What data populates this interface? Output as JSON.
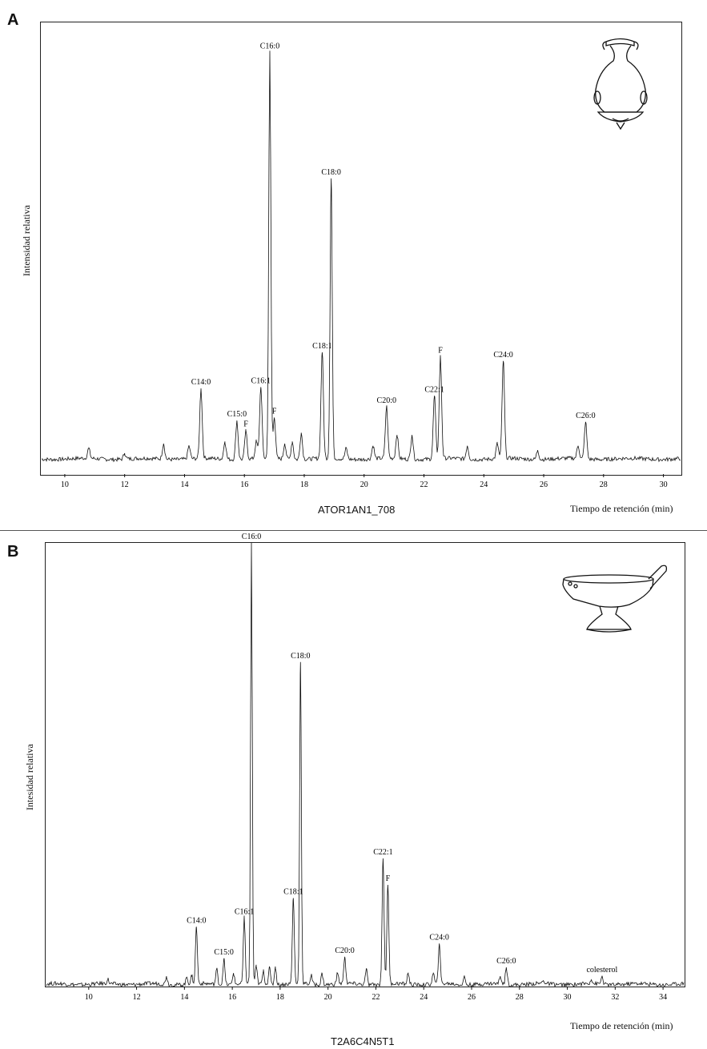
{
  "panels": [
    {
      "letter": "A",
      "ylabel": "Intensidad relativa",
      "xlabel": "Tiempo de retención (min)",
      "sample": "ATOR1AN1_708",
      "vessel_icon": "amphora-vessel-icon"
    },
    {
      "letter": "B",
      "ylabel": "Intesidad relativa",
      "xlabel": "Tiempo de retención (min)",
      "sample": "T2A6C4N5T1",
      "vessel_icon": "oil-lamp-vessel-icon"
    }
  ],
  "chart_data": [
    {
      "type": "line",
      "title": "",
      "xlabel": "Tiempo de retención (min)",
      "ylabel": "Intensidad relativa",
      "xlim": [
        9.2,
        30.6
      ],
      "ylim": [
        0,
        100
      ],
      "xticks": [
        10,
        12,
        14,
        16,
        18,
        20,
        22,
        24,
        26,
        28,
        30
      ],
      "peaks": [
        {
          "x": 10.8,
          "y": 2.3,
          "label": ""
        },
        {
          "x": 12.0,
          "y": 1.3,
          "label": ""
        },
        {
          "x": 13.3,
          "y": 3.5,
          "label": ""
        },
        {
          "x": 14.15,
          "y": 3.0,
          "label": ""
        },
        {
          "x": 14.55,
          "y": 16.2,
          "label": "C14:0"
        },
        {
          "x": 15.35,
          "y": 4.0,
          "label": ""
        },
        {
          "x": 15.75,
          "y": 8.8,
          "label": "C15:0"
        },
        {
          "x": 16.05,
          "y": 6.5,
          "label": "F"
        },
        {
          "x": 16.4,
          "y": 4.0,
          "label": ""
        },
        {
          "x": 16.55,
          "y": 16.5,
          "label": "C16:1"
        },
        {
          "x": 16.85,
          "y": 93.5,
          "label": "C16:0"
        },
        {
          "x": 17.0,
          "y": 9.5,
          "label": "F"
        },
        {
          "x": 17.35,
          "y": 3.5,
          "label": ""
        },
        {
          "x": 17.6,
          "y": 4.0,
          "label": ""
        },
        {
          "x": 17.9,
          "y": 6.0,
          "label": ""
        },
        {
          "x": 18.6,
          "y": 24.5,
          "label": "C18:1"
        },
        {
          "x": 18.9,
          "y": 64.5,
          "label": "C18:0"
        },
        {
          "x": 19.4,
          "y": 2.5,
          "label": ""
        },
        {
          "x": 20.3,
          "y": 3.0,
          "label": ""
        },
        {
          "x": 20.75,
          "y": 12.0,
          "label": "C20:0"
        },
        {
          "x": 21.1,
          "y": 5.5,
          "label": ""
        },
        {
          "x": 21.6,
          "y": 5.5,
          "label": ""
        },
        {
          "x": 22.35,
          "y": 14.5,
          "label": "C22:1"
        },
        {
          "x": 22.55,
          "y": 23.5,
          "label": "F"
        },
        {
          "x": 23.45,
          "y": 3.0,
          "label": ""
        },
        {
          "x": 24.45,
          "y": 3.5,
          "label": ""
        },
        {
          "x": 24.65,
          "y": 22.5,
          "label": "C24:0"
        },
        {
          "x": 25.8,
          "y": 2.0,
          "label": ""
        },
        {
          "x": 27.15,
          "y": 3.0,
          "label": ""
        },
        {
          "x": 27.4,
          "y": 8.5,
          "label": "C26:0"
        }
      ]
    },
    {
      "type": "line",
      "title": "",
      "xlabel": "Tiempo de retención (min)",
      "ylabel": "Intesidad relativa",
      "xlim": [
        8.2,
        34.9
      ],
      "ylim": [
        0,
        100
      ],
      "xticks": [
        10,
        12,
        14,
        16,
        18,
        20,
        22,
        24,
        26,
        28,
        30,
        32,
        34
      ],
      "peaks": [
        {
          "x": 10.8,
          "y": 1.0,
          "label": ""
        },
        {
          "x": 13.25,
          "y": 1.8,
          "label": ""
        },
        {
          "x": 14.1,
          "y": 1.6,
          "label": ""
        },
        {
          "x": 14.3,
          "y": 1.8,
          "label": ""
        },
        {
          "x": 14.5,
          "y": 13.0,
          "label": "C14:0"
        },
        {
          "x": 15.35,
          "y": 3.5,
          "label": ""
        },
        {
          "x": 15.65,
          "y": 5.8,
          "label": "C15:0"
        },
        {
          "x": 16.05,
          "y": 2.5,
          "label": ""
        },
        {
          "x": 16.5,
          "y": 15.0,
          "label": "C16:1"
        },
        {
          "x": 16.8,
          "y": 100,
          "label": "C16:0"
        },
        {
          "x": 17.0,
          "y": 4.0,
          "label": ""
        },
        {
          "x": 17.3,
          "y": 3.0,
          "label": ""
        },
        {
          "x": 17.55,
          "y": 4.0,
          "label": ""
        },
        {
          "x": 17.8,
          "y": 4.0,
          "label": ""
        },
        {
          "x": 18.55,
          "y": 19.5,
          "label": "C18:1"
        },
        {
          "x": 18.85,
          "y": 73.0,
          "label": "C18:0"
        },
        {
          "x": 19.3,
          "y": 2.0,
          "label": ""
        },
        {
          "x": 19.75,
          "y": 2.5,
          "label": ""
        },
        {
          "x": 20.4,
          "y": 2.5,
          "label": ""
        },
        {
          "x": 20.7,
          "y": 6.2,
          "label": "C20:0"
        },
        {
          "x": 21.6,
          "y": 3.5,
          "label": ""
        },
        {
          "x": 22.3,
          "y": 28.5,
          "label": "C22:1"
        },
        {
          "x": 22.5,
          "y": 22.5,
          "label": "F"
        },
        {
          "x": 23.35,
          "y": 2.5,
          "label": ""
        },
        {
          "x": 24.4,
          "y": 2.5,
          "label": ""
        },
        {
          "x": 24.65,
          "y": 9.2,
          "label": "C24:0"
        },
        {
          "x": 25.7,
          "y": 1.8,
          "label": ""
        },
        {
          "x": 27.2,
          "y": 1.8,
          "label": ""
        },
        {
          "x": 27.45,
          "y": 3.8,
          "label": "C26:0"
        },
        {
          "x": 29.0,
          "y": 0.8,
          "label": ""
        },
        {
          "x": 31.0,
          "y": 1.0,
          "label": ""
        },
        {
          "x": 31.45,
          "y": 1.8,
          "label": "colesterol"
        }
      ]
    }
  ]
}
